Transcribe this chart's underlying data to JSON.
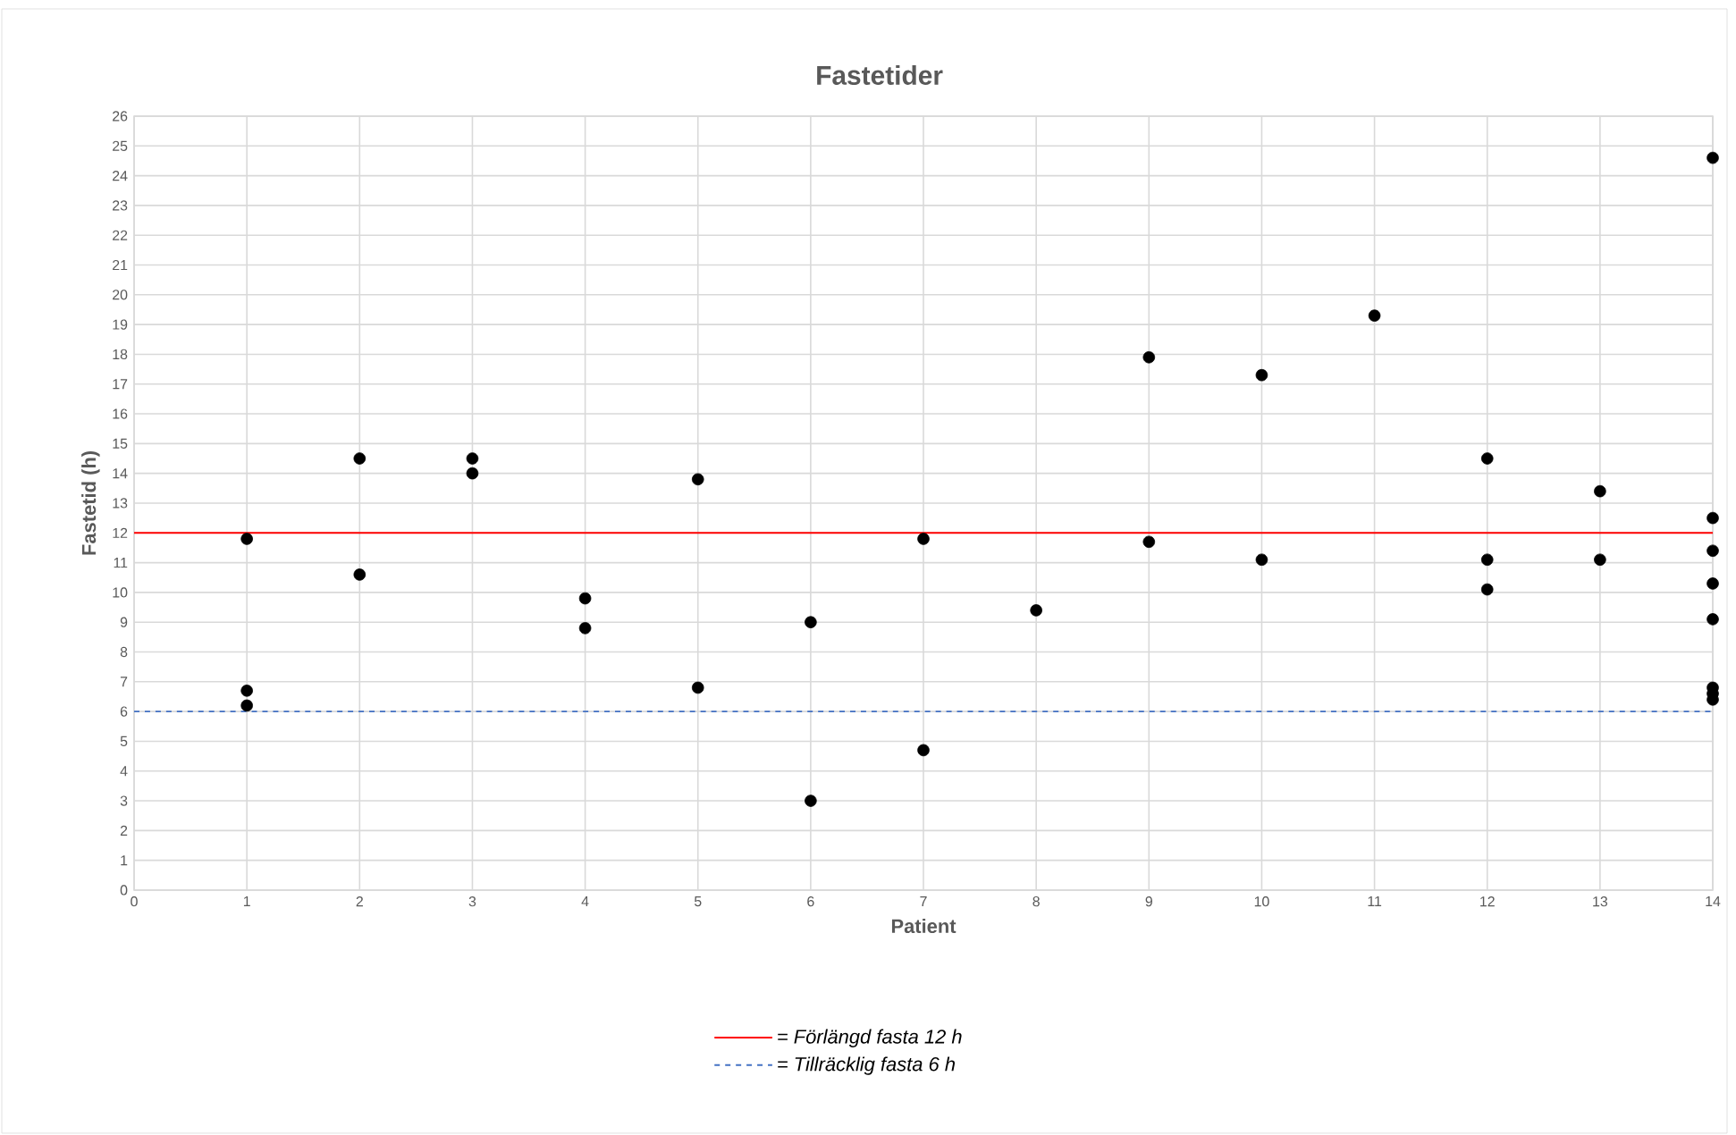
{
  "chart_data": {
    "type": "scatter",
    "title": "Fastetider",
    "xlabel": "Patient",
    "ylabel": "Fastetid (h)",
    "xlim": [
      0,
      14
    ],
    "xticks": [
      0,
      1,
      2,
      3,
      4,
      5,
      6,
      7,
      8,
      9,
      10,
      11,
      12,
      13,
      14
    ],
    "ylim": [
      0,
      26
    ],
    "yticks": [
      0,
      1,
      2,
      3,
      4,
      5,
      6,
      7,
      8,
      9,
      10,
      11,
      12,
      13,
      14,
      15,
      16,
      17,
      18,
      19,
      20,
      21,
      22,
      23,
      24,
      25,
      26
    ],
    "grid": true,
    "marker": "circle",
    "legend": "bottom",
    "series": [
      {
        "color": "#000000",
        "x": [
          1,
          1,
          1,
          2,
          2,
          3,
          3,
          4,
          4,
          5,
          5,
          6,
          6,
          7,
          7,
          8,
          9,
          9,
          10,
          10,
          11,
          12,
          12,
          12,
          13,
          13,
          14,
          14,
          14,
          14,
          14,
          14,
          14,
          14
        ],
        "values": [
          11.8,
          6.7,
          6.2,
          14.5,
          10.6,
          14.5,
          14.0,
          9.8,
          8.8,
          13.8,
          6.8,
          9.0,
          3.0,
          11.8,
          4.7,
          9.4,
          17.9,
          11.7,
          17.3,
          11.1,
          19.3,
          14.5,
          11.1,
          10.1,
          13.4,
          11.1,
          24.6,
          12.5,
          11.4,
          10.3,
          9.1,
          6.8,
          6.6,
          6.4
        ]
      }
    ],
    "ref_lines": [
      {
        "axis": "y",
        "value": 12,
        "label": "= Förlängd fasta 12 h",
        "color": "#ff0000",
        "line_style": "solid"
      },
      {
        "axis": "y",
        "value": 6,
        "label": "= Tillräcklig fasta 6 h",
        "color": "#4472c4",
        "line_style": "dashed"
      }
    ]
  }
}
